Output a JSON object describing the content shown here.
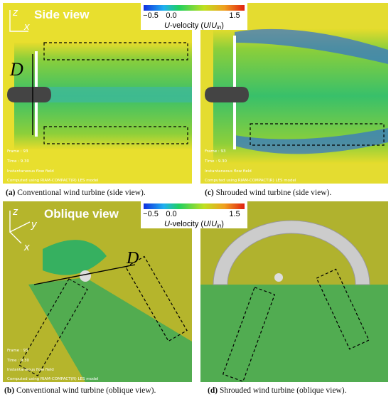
{
  "panels": [
    {
      "label": "(a)",
      "caption": "Conventional wind turbine (side view).",
      "view_title": "Side view",
      "axes": [
        "z",
        "x"
      ],
      "dimension": "D",
      "overlay": [
        "Frame : 93",
        "Time : 9.30",
        "Instantaneous flow field",
        "Computed using RIAM-COMPACT(R) LES model"
      ]
    },
    {
      "label": "(c)",
      "caption": "Shrouded wind turbine (side view).",
      "overlay": [
        "Frame : 93",
        "Time : 9.30",
        "Instantaneous flow field",
        "Computed using RIAM-COMPACT(R) LES model"
      ]
    },
    {
      "label": "(b)",
      "caption": "Conventional wind turbine (oblique view).",
      "view_title": "Oblique view",
      "axes": [
        "z",
        "y",
        "x"
      ],
      "dimension": "D",
      "overlay": [
        "Frame : 93",
        "Time : 9.30",
        "Instantaneous flow field",
        "Computed using RIAM-COMPACT(R) LES model"
      ]
    },
    {
      "label": "(d)",
      "caption": "Shrouded wind turbine (oblique view)."
    }
  ],
  "colorbars": [
    {
      "ticks": [
        "−0.5",
        "0.0",
        "1.5"
      ],
      "label": [
        "U",
        "-velocity (",
        "U",
        "/",
        "U",
        "in",
        ")"
      ]
    },
    {
      "ticks": [
        "−0.5",
        "0.0",
        "1.5"
      ],
      "label": [
        "U",
        "-velocity (",
        "U",
        "/",
        "U",
        "in",
        ")"
      ]
    }
  ]
}
